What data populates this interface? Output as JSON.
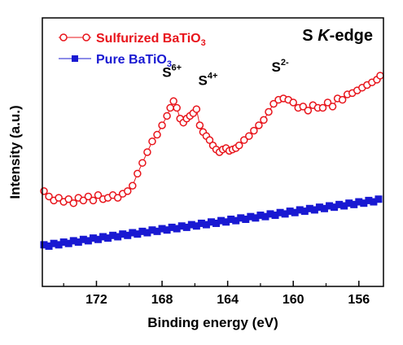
{
  "chart_data": {
    "type": "scatter",
    "title": "",
    "panel_label": "S K-edge",
    "panel_label_parts": {
      "prefix": "S ",
      "italic": "K",
      "suffix": "-edge"
    },
    "xlabel": "Binding energy (eV)",
    "ylabel": "Intensity (a.u.)",
    "x_reversed": true,
    "xlim": [
      175.3,
      154.5
    ],
    "ylim": [
      0,
      1
    ],
    "y_ticks_labeled": false,
    "x_ticks": [
      172,
      168,
      164,
      160,
      156
    ],
    "x_tick_labels": [
      "172",
      "168",
      "164",
      "160",
      "156"
    ],
    "grid": false,
    "legend_position": "top-left",
    "series": [
      {
        "name": "Sulfurized BaTiO3",
        "legend_parts": {
          "base": "Sulfurized BaTiO",
          "sub": "3"
        },
        "color": "#e8141b",
        "marker": "open-circle",
        "x": [
          175.2,
          174.9,
          174.6,
          174.3,
          174.0,
          173.7,
          173.4,
          173.1,
          172.8,
          172.5,
          172.2,
          171.9,
          171.6,
          171.3,
          171.0,
          170.7,
          170.4,
          170.1,
          169.8,
          169.5,
          169.2,
          168.9,
          168.6,
          168.3,
          168.0,
          167.7,
          167.5,
          167.3,
          167.1,
          166.9,
          166.7,
          166.5,
          166.3,
          166.1,
          165.9,
          165.7,
          165.5,
          165.3,
          165.1,
          164.9,
          164.7,
          164.5,
          164.3,
          164.1,
          163.9,
          163.7,
          163.5,
          163.3,
          163.0,
          162.7,
          162.4,
          162.1,
          161.8,
          161.5,
          161.2,
          160.9,
          160.6,
          160.3,
          160.0,
          159.7,
          159.4,
          159.1,
          158.8,
          158.5,
          158.2,
          157.9,
          157.6,
          157.3,
          157.0,
          156.7,
          156.4,
          156.1,
          155.8,
          155.5,
          155.2,
          154.9,
          154.7
        ],
        "y": [
          0.355,
          0.335,
          0.32,
          0.33,
          0.315,
          0.325,
          0.31,
          0.33,
          0.32,
          0.335,
          0.32,
          0.34,
          0.325,
          0.33,
          0.34,
          0.33,
          0.345,
          0.355,
          0.375,
          0.42,
          0.46,
          0.5,
          0.54,
          0.565,
          0.6,
          0.635,
          0.665,
          0.69,
          0.665,
          0.625,
          0.61,
          0.625,
          0.635,
          0.645,
          0.66,
          0.6,
          0.575,
          0.56,
          0.545,
          0.525,
          0.51,
          0.5,
          0.51,
          0.515,
          0.505,
          0.51,
          0.515,
          0.525,
          0.545,
          0.56,
          0.58,
          0.6,
          0.62,
          0.65,
          0.68,
          0.695,
          0.7,
          0.695,
          0.685,
          0.665,
          0.67,
          0.655,
          0.675,
          0.665,
          0.665,
          0.685,
          0.67,
          0.7,
          0.695,
          0.715,
          0.72,
          0.73,
          0.74,
          0.75,
          0.76,
          0.77,
          0.785
        ]
      },
      {
        "name": "Pure BaTiO3",
        "legend_parts": {
          "base": "Pure BaTiO",
          "sub": "3"
        },
        "color": "#1919d2",
        "marker": "filled-square",
        "x": [
          175.2,
          174.9,
          174.6,
          174.3,
          174.0,
          173.7,
          173.4,
          173.1,
          172.8,
          172.5,
          172.2,
          171.9,
          171.6,
          171.3,
          171.0,
          170.7,
          170.4,
          170.1,
          169.8,
          169.5,
          169.2,
          168.9,
          168.6,
          168.3,
          168.0,
          167.7,
          167.4,
          167.1,
          166.8,
          166.5,
          166.2,
          165.9,
          165.6,
          165.3,
          165.0,
          164.7,
          164.4,
          164.1,
          163.8,
          163.5,
          163.2,
          162.9,
          162.6,
          162.3,
          162.0,
          161.7,
          161.4,
          161.1,
          160.8,
          160.5,
          160.2,
          159.9,
          159.6,
          159.3,
          159.0,
          158.7,
          158.4,
          158.1,
          157.8,
          157.5,
          157.2,
          156.9,
          156.6,
          156.3,
          156.0,
          155.7,
          155.4,
          155.1,
          154.8
        ],
        "y": [
          0.155,
          0.15,
          0.16,
          0.155,
          0.165,
          0.16,
          0.17,
          0.165,
          0.175,
          0.17,
          0.18,
          0.175,
          0.185,
          0.18,
          0.19,
          0.185,
          0.195,
          0.19,
          0.2,
          0.195,
          0.205,
          0.2,
          0.21,
          0.205,
          0.215,
          0.21,
          0.22,
          0.215,
          0.225,
          0.22,
          0.23,
          0.225,
          0.235,
          0.23,
          0.24,
          0.235,
          0.245,
          0.24,
          0.25,
          0.245,
          0.255,
          0.25,
          0.26,
          0.255,
          0.265,
          0.26,
          0.27,
          0.265,
          0.275,
          0.27,
          0.28,
          0.275,
          0.285,
          0.28,
          0.29,
          0.285,
          0.295,
          0.29,
          0.3,
          0.295,
          0.305,
          0.3,
          0.31,
          0.305,
          0.315,
          0.31,
          0.32,
          0.315,
          0.325
        ]
      }
    ],
    "annotations": [
      {
        "name": "s6",
        "base": "S",
        "sup": "6+",
        "x": 167.4,
        "y": 0.78
      },
      {
        "name": "s4",
        "base": "S",
        "sup": "4+",
        "x": 165.2,
        "y": 0.75
      },
      {
        "name": "s2",
        "base": "S",
        "sup": "2-",
        "x": 160.8,
        "y": 0.8
      }
    ]
  }
}
